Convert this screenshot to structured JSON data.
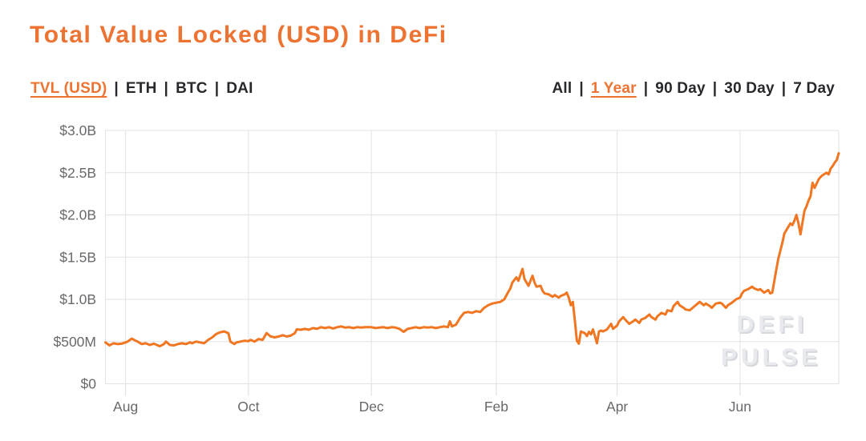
{
  "page": {
    "title": "Total Value Locked (USD) in DeFi"
  },
  "metric_tabs": {
    "separator": "|",
    "items": [
      {
        "label": "TVL (USD)",
        "selected": true
      },
      {
        "label": "ETH",
        "selected": false
      },
      {
        "label": "BTC",
        "selected": false
      },
      {
        "label": "DAI",
        "selected": false
      }
    ]
  },
  "range_tabs": {
    "separator": "|",
    "items": [
      {
        "label": "All",
        "selected": false
      },
      {
        "label": "1 Year",
        "selected": true
      },
      {
        "label": "90 Day",
        "selected": false
      },
      {
        "label": "30 Day",
        "selected": false
      },
      {
        "label": "7 Day",
        "selected": false
      }
    ]
  },
  "watermark": {
    "line1": "DEFI",
    "line2": "PULSE"
  },
  "colors": {
    "accent": "#ED7332",
    "line": "#F07622",
    "tick_text": "#68696C",
    "grid": "#E0E2E6",
    "body_text": "#26282B",
    "watermark": "#E8EAEE"
  },
  "chart_data": {
    "type": "line",
    "title": "Total Value Locked (USD) in DeFi",
    "series_name": "TVL (USD)",
    "x_start_date": "2019-07-22",
    "x_end_date": "2020-07-20",
    "x_total_days": 364,
    "x_tick_labels": [
      "Aug",
      "Oct",
      "Dec",
      "Feb",
      "Apr",
      "Jun"
    ],
    "x_tick_days": [
      10,
      71,
      132,
      194,
      254,
      315
    ],
    "y_tick_labels": [
      "$0",
      "$500M",
      "$1.0B",
      "$1.5B",
      "$2.0B",
      "$2.5B",
      "$3.0B"
    ],
    "y_tick_values": [
      0,
      0.5,
      1.0,
      1.5,
      2.0,
      2.5,
      3.0
    ],
    "ylim": [
      0,
      3.0
    ],
    "y_unit": "USD billions",
    "grid": true,
    "legend": "none",
    "points_format": "[day_offset_from_2019-07-22, tvl_usd_billions]",
    "points": [
      [
        0,
        0.49
      ],
      [
        2,
        0.455
      ],
      [
        4,
        0.48
      ],
      [
        6,
        0.47
      ],
      [
        8,
        0.475
      ],
      [
        10,
        0.49
      ],
      [
        11,
        0.5
      ],
      [
        13,
        0.535
      ],
      [
        15,
        0.51
      ],
      [
        16,
        0.5
      ],
      [
        18,
        0.47
      ],
      [
        20,
        0.48
      ],
      [
        22,
        0.46
      ],
      [
        24,
        0.475
      ],
      [
        26,
        0.455
      ],
      [
        27,
        0.445
      ],
      [
        29,
        0.47
      ],
      [
        30,
        0.5
      ],
      [
        32,
        0.46
      ],
      [
        34,
        0.455
      ],
      [
        36,
        0.47
      ],
      [
        38,
        0.48
      ],
      [
        40,
        0.47
      ],
      [
        42,
        0.49
      ],
      [
        43,
        0.48
      ],
      [
        45,
        0.5
      ],
      [
        47,
        0.49
      ],
      [
        49,
        0.48
      ],
      [
        51,
        0.52
      ],
      [
        53,
        0.55
      ],
      [
        55,
        0.59
      ],
      [
        57,
        0.61
      ],
      [
        59,
        0.62
      ],
      [
        61,
        0.6
      ],
      [
        62,
        0.5
      ],
      [
        64,
        0.47
      ],
      [
        65,
        0.49
      ],
      [
        67,
        0.5
      ],
      [
        69,
        0.51
      ],
      [
        71,
        0.505
      ],
      [
        72,
        0.52
      ],
      [
        74,
        0.5
      ],
      [
        76,
        0.53
      ],
      [
        78,
        0.52
      ],
      [
        80,
        0.6
      ],
      [
        82,
        0.56
      ],
      [
        84,
        0.55
      ],
      [
        86,
        0.56
      ],
      [
        88,
        0.575
      ],
      [
        90,
        0.56
      ],
      [
        92,
        0.57
      ],
      [
        94,
        0.6
      ],
      [
        95,
        0.645
      ],
      [
        97,
        0.64
      ],
      [
        99,
        0.65
      ],
      [
        101,
        0.64
      ],
      [
        103,
        0.66
      ],
      [
        105,
        0.65
      ],
      [
        107,
        0.67
      ],
      [
        109,
        0.66
      ],
      [
        111,
        0.67
      ],
      [
        113,
        0.655
      ],
      [
        115,
        0.67
      ],
      [
        117,
        0.68
      ],
      [
        119,
        0.665
      ],
      [
        121,
        0.67
      ],
      [
        123,
        0.66
      ],
      [
        125,
        0.67
      ],
      [
        127,
        0.665
      ],
      [
        129,
        0.67
      ],
      [
        132,
        0.67
      ],
      [
        134,
        0.66
      ],
      [
        136,
        0.665
      ],
      [
        138,
        0.67
      ],
      [
        140,
        0.66
      ],
      [
        142,
        0.67
      ],
      [
        144,
        0.665
      ],
      [
        146,
        0.65
      ],
      [
        148,
        0.615
      ],
      [
        150,
        0.65
      ],
      [
        152,
        0.66
      ],
      [
        154,
        0.67
      ],
      [
        156,
        0.66
      ],
      [
        158,
        0.67
      ],
      [
        160,
        0.665
      ],
      [
        162,
        0.67
      ],
      [
        164,
        0.66
      ],
      [
        166,
        0.67
      ],
      [
        168,
        0.68
      ],
      [
        170,
        0.67
      ],
      [
        171,
        0.74
      ],
      [
        172,
        0.68
      ],
      [
        174,
        0.7
      ],
      [
        176,
        0.78
      ],
      [
        178,
        0.84
      ],
      [
        180,
        0.85
      ],
      [
        182,
        0.84
      ],
      [
        184,
        0.86
      ],
      [
        186,
        0.85
      ],
      [
        188,
        0.9
      ],
      [
        190,
        0.93
      ],
      [
        192,
        0.95
      ],
      [
        194,
        0.96
      ],
      [
        196,
        0.97
      ],
      [
        198,
        1.0
      ],
      [
        200,
        1.09
      ],
      [
        201,
        1.13
      ],
      [
        202,
        1.2
      ],
      [
        204,
        1.26
      ],
      [
        205,
        1.22
      ],
      [
        207,
        1.36
      ],
      [
        208,
        1.24
      ],
      [
        210,
        1.16
      ],
      [
        211,
        1.22
      ],
      [
        212,
        1.28
      ],
      [
        213,
        1.2
      ],
      [
        214,
        1.15
      ],
      [
        216,
        1.16
      ],
      [
        217,
        1.1
      ],
      [
        218,
        1.07
      ],
      [
        220,
        1.06
      ],
      [
        222,
        1.03
      ],
      [
        223,
        1.05
      ],
      [
        225,
        1.02
      ],
      [
        226,
        1.04
      ],
      [
        228,
        1.06
      ],
      [
        229,
        1.08
      ],
      [
        230,
        1.02
      ],
      [
        231,
        0.93
      ],
      [
        232,
        0.97
      ],
      [
        233,
        0.75
      ],
      [
        234,
        0.51
      ],
      [
        235,
        0.475
      ],
      [
        236,
        0.62
      ],
      [
        238,
        0.6
      ],
      [
        239,
        0.565
      ],
      [
        240,
        0.615
      ],
      [
        241,
        0.585
      ],
      [
        242,
        0.645
      ],
      [
        244,
        0.48
      ],
      [
        245,
        0.62
      ],
      [
        246,
        0.63
      ],
      [
        247,
        0.62
      ],
      [
        249,
        0.645
      ],
      [
        251,
        0.71
      ],
      [
        252,
        0.65
      ],
      [
        254,
        0.69
      ],
      [
        255,
        0.74
      ],
      [
        257,
        0.79
      ],
      [
        258,
        0.76
      ],
      [
        260,
        0.71
      ],
      [
        262,
        0.74
      ],
      [
        263,
        0.76
      ],
      [
        265,
        0.72
      ],
      [
        266,
        0.76
      ],
      [
        268,
        0.78
      ],
      [
        270,
        0.82
      ],
      [
        271,
        0.79
      ],
      [
        273,
        0.76
      ],
      [
        274,
        0.8
      ],
      [
        276,
        0.84
      ],
      [
        278,
        0.82
      ],
      [
        279,
        0.87
      ],
      [
        281,
        0.86
      ],
      [
        282,
        0.92
      ],
      [
        284,
        0.97
      ],
      [
        285,
        0.93
      ],
      [
        287,
        0.9
      ],
      [
        288,
        0.88
      ],
      [
        290,
        0.87
      ],
      [
        292,
        0.91
      ],
      [
        293,
        0.93
      ],
      [
        295,
        0.97
      ],
      [
        297,
        0.93
      ],
      [
        298,
        0.95
      ],
      [
        300,
        0.92
      ],
      [
        301,
        0.9
      ],
      [
        303,
        0.95
      ],
      [
        305,
        0.96
      ],
      [
        306,
        0.95
      ],
      [
        308,
        0.9
      ],
      [
        309,
        0.93
      ],
      [
        311,
        0.96
      ],
      [
        313,
        1.0
      ],
      [
        315,
        1.02
      ],
      [
        316,
        1.07
      ],
      [
        317,
        1.1
      ],
      [
        319,
        1.12
      ],
      [
        321,
        1.15
      ],
      [
        322,
        1.13
      ],
      [
        324,
        1.11
      ],
      [
        325,
        1.12
      ],
      [
        327,
        1.08
      ],
      [
        329,
        1.11
      ],
      [
        330,
        1.07
      ],
      [
        331,
        1.08
      ],
      [
        333,
        1.35
      ],
      [
        334,
        1.48
      ],
      [
        336,
        1.67
      ],
      [
        337,
        1.78
      ],
      [
        339,
        1.86
      ],
      [
        340,
        1.9
      ],
      [
        341,
        1.88
      ],
      [
        342,
        1.93
      ],
      [
        343,
        2.0
      ],
      [
        344,
        1.9
      ],
      [
        345,
        1.77
      ],
      [
        347,
        2.05
      ],
      [
        348,
        2.1
      ],
      [
        349,
        2.17
      ],
      [
        350,
        2.22
      ],
      [
        351,
        2.38
      ],
      [
        352,
        2.32
      ],
      [
        354,
        2.42
      ],
      [
        355,
        2.45
      ],
      [
        356,
        2.47
      ],
      [
        358,
        2.5
      ],
      [
        359,
        2.48
      ],
      [
        360,
        2.55
      ],
      [
        361,
        2.58
      ],
      [
        362,
        2.62
      ],
      [
        363,
        2.65
      ],
      [
        364,
        2.73
      ]
    ]
  }
}
